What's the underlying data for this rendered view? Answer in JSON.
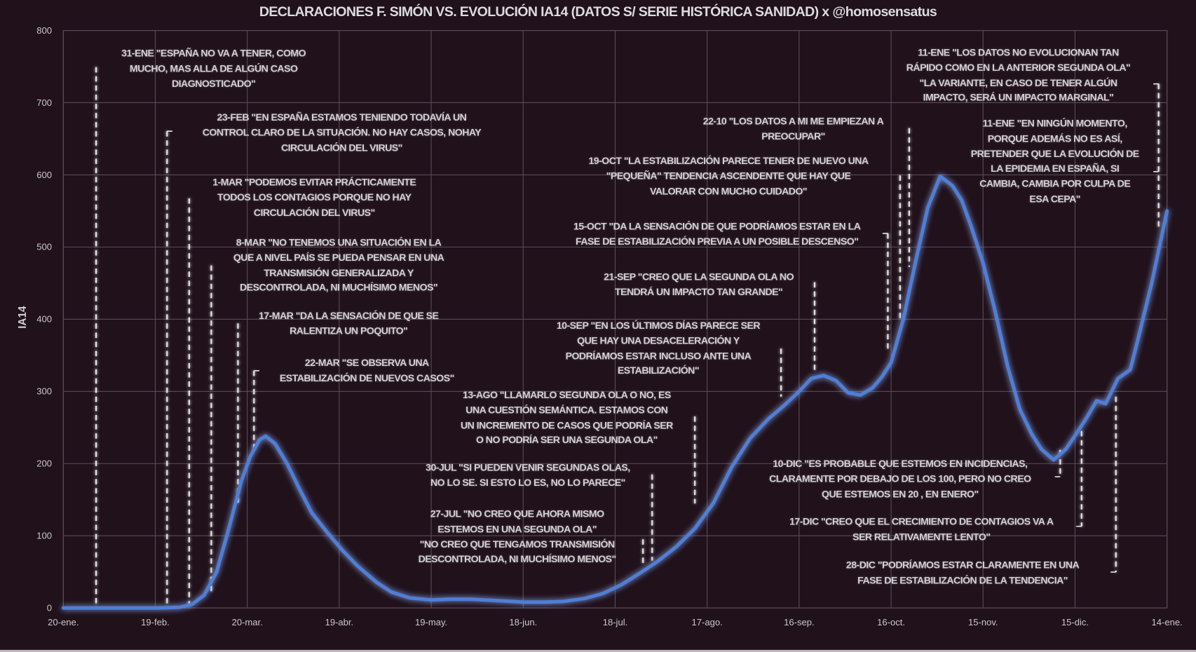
{
  "chart_data": {
    "type": "line",
    "title": "DECLARACIONES F. SIMÓN VS. EVOLUCIÓN IA14 (DATOS S/ SERIE HISTÓRICA SANIDAD)  x @homosensatus",
    "xlabel": "",
    "ylabel": "IA14",
    "ylim": [
      0,
      800
    ],
    "yticks": [
      "0",
      "100",
      "200",
      "300",
      "400",
      "500",
      "600",
      "700",
      "800"
    ],
    "xlim": [
      "2020-01-20",
      "2021-01-14"
    ],
    "xticks": [
      "20-ene.",
      "19-feb.",
      "20-mar.",
      "19-abr.",
      "19-may.",
      "18-jun.",
      "18-jul.",
      "17-ago.",
      "16-sep.",
      "16-oct.",
      "15-nov.",
      "15-dic.",
      "14-ene."
    ],
    "grid": true,
    "colors": {
      "series": "#4f7fd6",
      "background": "#20111b",
      "grid": "#5a4d57",
      "annotation": "#e6e6e6"
    },
    "series": [
      {
        "points": [
          [
            "2020-01-20",
            0
          ],
          [
            "2020-02-20",
            0
          ],
          [
            "2020-02-27",
            1
          ],
          [
            "2020-03-02",
            5
          ],
          [
            "2020-03-06",
            18
          ],
          [
            "2020-03-10",
            50
          ],
          [
            "2020-03-14",
            110
          ],
          [
            "2020-03-18",
            175
          ],
          [
            "2020-03-21",
            210
          ],
          [
            "2020-03-24",
            233
          ],
          [
            "2020-03-26",
            238
          ],
          [
            "2020-03-29",
            228
          ],
          [
            "2020-04-02",
            200
          ],
          [
            "2020-04-06",
            165
          ],
          [
            "2020-04-10",
            132
          ],
          [
            "2020-04-15",
            105
          ],
          [
            "2020-04-20",
            80
          ],
          [
            "2020-04-25",
            58
          ],
          [
            "2020-05-01",
            36
          ],
          [
            "2020-05-06",
            22
          ],
          [
            "2020-05-12",
            14
          ],
          [
            "2020-05-19",
            11
          ],
          [
            "2020-05-25",
            12
          ],
          [
            "2020-06-01",
            12
          ],
          [
            "2020-06-10",
            10
          ],
          [
            "2020-06-18",
            8
          ],
          [
            "2020-06-25",
            8
          ],
          [
            "2020-07-01",
            9
          ],
          [
            "2020-07-08",
            13
          ],
          [
            "2020-07-14",
            20
          ],
          [
            "2020-07-20",
            32
          ],
          [
            "2020-07-26",
            48
          ],
          [
            "2020-08-01",
            65
          ],
          [
            "2020-08-07",
            85
          ],
          [
            "2020-08-13",
            110
          ],
          [
            "2020-08-19",
            145
          ],
          [
            "2020-08-25",
            195
          ],
          [
            "2020-08-31",
            235
          ],
          [
            "2020-09-06",
            262
          ],
          [
            "2020-09-11",
            280
          ],
          [
            "2020-09-16",
            300
          ],
          [
            "2020-09-20",
            318
          ],
          [
            "2020-09-24",
            322
          ],
          [
            "2020-09-28",
            315
          ],
          [
            "2020-10-02",
            298
          ],
          [
            "2020-10-06",
            295
          ],
          [
            "2020-10-10",
            305
          ],
          [
            "2020-10-13",
            320
          ],
          [
            "2020-10-16",
            340
          ],
          [
            "2020-10-20",
            400
          ],
          [
            "2020-10-24",
            480
          ],
          [
            "2020-10-28",
            555
          ],
          [
            "2020-11-01",
            598
          ],
          [
            "2020-11-05",
            585
          ],
          [
            "2020-11-08",
            565
          ],
          [
            "2020-11-11",
            530
          ],
          [
            "2020-11-15",
            478
          ],
          [
            "2020-11-19",
            410
          ],
          [
            "2020-11-23",
            335
          ],
          [
            "2020-11-27",
            275
          ],
          [
            "2020-12-01",
            240
          ],
          [
            "2020-12-04",
            220
          ],
          [
            "2020-12-08",
            205
          ],
          [
            "2020-12-12",
            220
          ],
          [
            "2020-12-16",
            245
          ],
          [
            "2020-12-19",
            265
          ],
          [
            "2020-12-22",
            287
          ],
          [
            "2020-12-25",
            283
          ],
          [
            "2020-12-29",
            318
          ],
          [
            "2021-01-02",
            330
          ],
          [
            "2021-01-05",
            380
          ],
          [
            "2021-01-09",
            450
          ],
          [
            "2021-01-14",
            550
          ]
        ]
      }
    ]
  },
  "annotations": [
    {
      "lines": [
        "31-ENE \"ESPAÑA NO VA A TENER, COMO",
        "MUCHO, MAS ALLA DE ALGÚN CASO",
        "DIAGNOSTICADO\""
      ]
    },
    {
      "lines": [
        "23-FEB \"EN ESPAÑA ESTAMOS TENIENDO TODAVÍA UN",
        "CONTROL CLARO DE LA SITUACIÓN.  NO HAY CASOS, NOHAY",
        "CIRCULACIÓN DEL VIRUS\""
      ]
    },
    {
      "lines": [
        "1-MAR \"PODEMOS EVITAR PRÁCTICAMENTE",
        "TODOS LOS CONTAGIOS PORQUE NO HAY",
        "CIRCULACIÓN DEL VIRUS\""
      ]
    },
    {
      "lines": [
        "8-MAR \"NO TENEMOS UNA SITUACIÓN EN LA",
        "QUE A NIVEL PAÍS SE PUEDA PENSAR EN UNA",
        "TRANSMISIÓN GENERALIZADA Y",
        "DESCONTROLADA, NI MUCHÍSIMO MENOS\""
      ]
    },
    {
      "lines": [
        "17-MAR \"DA LA SENSACIÓN DE QUE SE",
        "RALENTIZA UN POQUITO\""
      ]
    },
    {
      "lines": [
        "22-MAR \"SE OBSERVA UNA",
        "ESTABILIZACIÓN DE NUEVOS CASOS\""
      ]
    },
    {
      "lines": [
        "13-AGO \"LLAMARLO SEGUNDA OLA O NO, ES",
        "UNA CUESTIÓN SEMÁNTICA.  ESTAMOS CON",
        "UN INCREMENTO DE CASOS QUE PODRÍA SER",
        "O NO PODRÍA SER UNA SEGUNDA OLA\""
      ]
    },
    {
      "lines": [
        "30-JUL \"SI PUEDEN VENIR SEGUNDAS OLAS,",
        "NO LO SE. SI ESTO LO ES, NO LO PARECE\""
      ]
    },
    {
      "lines": [
        "27-JUL \"NO CREO QUE AHORA MISMO",
        "ESTEMOS EN UNA SEGUNDA OLA\"",
        "\"NO CREO QUE TENGAMOS TRANSMISIÓN",
        "DESCONTROLADA, NI MUCHÍSIMO MENOS\""
      ]
    },
    {
      "lines": [
        "10-SEP \"EN LOS ÚLTIMOS DÍAS PARECE SER",
        "QUE HAY UNA DESACELERACIÓN Y",
        "PODRÍAMOS ESTAR INCLUSO ANTE UNA",
        "ESTABILIZACIÓN\""
      ]
    },
    {
      "lines": [
        "21-SEP \"CREO QUE LA SEGUNDA OLA NO",
        "TENDRÁ UN IMPACTO TAN GRANDE\""
      ]
    },
    {
      "lines": [
        "15-OCT \"DA LA SENSACIÓN DE QUE PODRÍAMOS ESTAR EN LA",
        "FASE DE ESTABILIZACIÓN PREVIA A UN POSIBLE DESCENSO\""
      ]
    },
    {
      "lines": [
        "19-OCT \"LA ESTABILIZACIÓN  PARECE TENER DE NUEVO UNA",
        "\"PEQUEÑA\" TENDENCIA ASCENDENTE QUE HAY QUE",
        "VALORAR CON MUCHO CUIDADO\""
      ]
    },
    {
      "lines": [
        "22-10 \"LOS DATOS A MI ME EMPIEZAN A",
        "PREOCUPAR\""
      ]
    },
    {
      "lines": [
        "11-ENE \"LOS DATOS NO EVOLUCIONAN TAN",
        "RÁPIDO COMO EN LA ANTERIOR SEGUNDA OLA\"",
        "\"LA VARIANTE, EN CASO DE TENER ALGÚN",
        "IMPACTO, SERÁ UN IMPACTO MARGINAL\""
      ]
    },
    {
      "lines": [
        "11-ENE \"EN NINGÚN MOMENTO,",
        "PORQUE ADEMÁS NO ES ASÍ,",
        "PRETENDER QUE LA EVOLUCIÓN DE",
        "LA EPIDEMIA EN ESPAÑA, SI",
        "CAMBIA, CAMBIA POR CULPA DE",
        "ESA CEPA\""
      ]
    },
    {
      "lines": [
        "10-DIC \"ES PROBABLE QUE ESTEMOS EN INCIDENCIAS,",
        "CLARAMENTE POR DEBAJO DE LOS 100, PERO NO CREO",
        "QUE ESTEMOS EN 20 , EN ENERO\""
      ]
    },
    {
      "lines": [
        "17-DIC \"CREO QUE EL CRECIMIENTO DE CONTAGIOS VA A",
        "SER RELATIVAMENTE LENTO\""
      ]
    },
    {
      "lines": [
        "28-DIC \"PODRÍAMOS ESTAR CLARAMENTE EN UNA",
        "FASE DE ESTABILIZACIÓN DE LA TENDENCIA\""
      ]
    }
  ]
}
